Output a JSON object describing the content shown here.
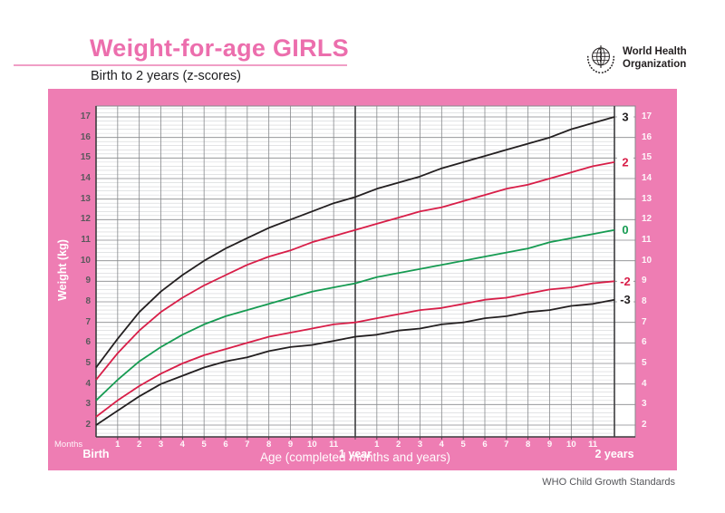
{
  "header": {
    "title": "Weight-for-age GIRLS",
    "subtitle": "Birth to 2 years (z-scores)",
    "who_logo_line1": "World Health",
    "who_logo_line2": "Organization"
  },
  "footer": {
    "text": "WHO Child Growth Standards"
  },
  "colors": {
    "panel_pink": "#ee7db3",
    "title_pink": "#ec6ead",
    "curve_black": "#231f20",
    "curve_red": "#d81e48",
    "curve_green": "#169b52",
    "grid_major": "#87898c",
    "grid_minor": "#d2d3d6",
    "axis_dark": "#3d3d3f"
  },
  "chart_data": {
    "type": "line",
    "title": "Weight-for-age GIRLS — Birth to 2 years (z-scores)",
    "xlabel": "Age (completed months and years)",
    "ylabel": "Weight (kg)",
    "x_axis": {
      "unit_label": "Months",
      "birth_label": "Birth",
      "year1_label": "1 year",
      "year2_label": "2 years",
      "month_numbers": [
        "1",
        "2",
        "3",
        "4",
        "5",
        "6",
        "7",
        "8",
        "9",
        "10",
        "11"
      ],
      "xlim_months": [
        0,
        25
      ]
    },
    "y_axis": {
      "ticks": [
        2,
        3,
        4,
        5,
        6,
        7,
        8,
        9,
        10,
        11,
        12,
        13,
        14,
        15,
        16,
        17
      ],
      "unit": "kg",
      "ylim": [
        1.4,
        17.55
      ],
      "labels_on_both_sides": true
    },
    "grid": {
      "y_minor_step_kg": 0.2,
      "x_step_months": 1,
      "dark_lines_at_months": [
        0,
        12,
        24
      ]
    },
    "x": [
      0,
      1,
      2,
      3,
      4,
      5,
      6,
      7,
      8,
      9,
      10,
      11,
      12,
      13,
      14,
      15,
      16,
      17,
      18,
      19,
      20,
      21,
      22,
      23,
      24
    ],
    "series": [
      {
        "name": "3",
        "zscore": 3,
        "color": "#231f20",
        "values": [
          4.8,
          6.2,
          7.5,
          8.5,
          9.3,
          10.0,
          10.6,
          11.1,
          11.6,
          12.0,
          12.4,
          12.8,
          13.1,
          13.5,
          13.8,
          14.1,
          14.5,
          14.8,
          15.1,
          15.4,
          15.7,
          16.0,
          16.4,
          16.7,
          17.0
        ]
      },
      {
        "name": "2",
        "zscore": 2,
        "color": "#d81e48",
        "values": [
          4.2,
          5.5,
          6.6,
          7.5,
          8.2,
          8.8,
          9.3,
          9.8,
          10.2,
          10.5,
          10.9,
          11.2,
          11.5,
          11.8,
          12.1,
          12.4,
          12.6,
          12.9,
          13.2,
          13.5,
          13.7,
          14.0,
          14.3,
          14.6,
          14.8
        ]
      },
      {
        "name": "0",
        "zscore": 0,
        "color": "#169b52",
        "values": [
          3.2,
          4.2,
          5.1,
          5.8,
          6.4,
          6.9,
          7.3,
          7.6,
          7.9,
          8.2,
          8.5,
          8.7,
          8.9,
          9.2,
          9.4,
          9.6,
          9.8,
          10.0,
          10.2,
          10.4,
          10.6,
          10.9,
          11.1,
          11.3,
          11.5
        ]
      },
      {
        "name": "-2",
        "zscore": -2,
        "color": "#d81e48",
        "values": [
          2.4,
          3.2,
          3.9,
          4.5,
          5.0,
          5.4,
          5.7,
          6.0,
          6.3,
          6.5,
          6.7,
          6.9,
          7.0,
          7.2,
          7.4,
          7.6,
          7.7,
          7.9,
          8.1,
          8.2,
          8.4,
          8.6,
          8.7,
          8.9,
          9.0
        ]
      },
      {
        "name": "-3",
        "zscore": -3,
        "color": "#231f20",
        "values": [
          2.0,
          2.7,
          3.4,
          4.0,
          4.4,
          4.8,
          5.1,
          5.3,
          5.6,
          5.8,
          5.9,
          6.1,
          6.3,
          6.4,
          6.6,
          6.7,
          6.9,
          7.0,
          7.2,
          7.3,
          7.5,
          7.6,
          7.8,
          7.9,
          8.1
        ]
      }
    ],
    "series_end_labels": [
      "3",
      "2",
      "0",
      "-2",
      "-3"
    ],
    "legend_position": "right-edge-of-curves"
  }
}
